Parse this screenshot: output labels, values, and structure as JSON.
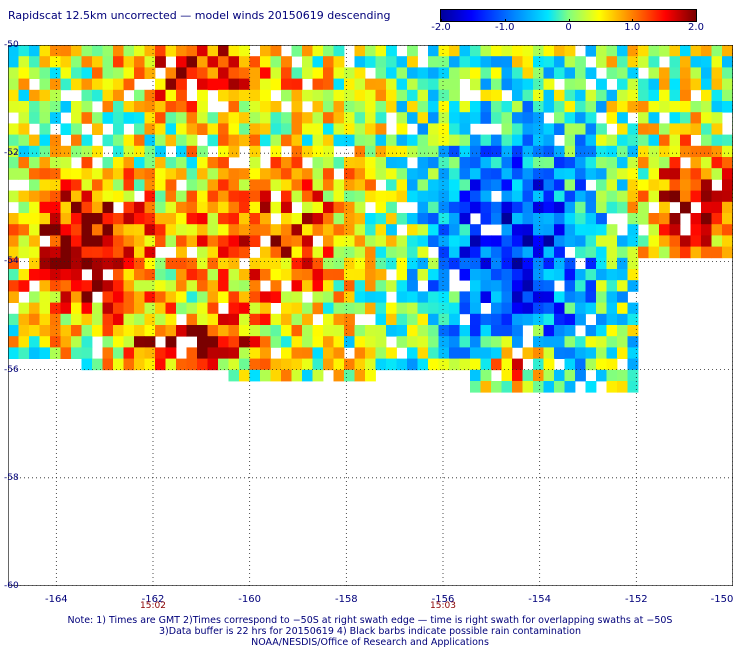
{
  "header": {
    "title": "Rapidscat 12.5km uncorrected — model winds 20150619 descending"
  },
  "colorbar": {
    "labels": [
      "-2.0",
      "-1.0",
      "0",
      "1.0",
      "2.0"
    ],
    "range": [
      -2.0,
      2.0
    ]
  },
  "footer": {
    "note_line1": "Note: 1) Times are GMT 2)Times correspond to −50S at right swath edge — time is right swath for overlapping swaths at −50S",
    "note_line2": "3)Data buffer is 22 hrs for 20150619 4) Black barbs indicate possible rain contamination",
    "note_line3": "NOAA/NESDIS/Office of Research and Applications"
  },
  "chart_data": {
    "type": "heatmap",
    "title": "Rapidscat 12.5km uncorrected — model winds 20150619 descending",
    "xlabel": "",
    "ylabel": "",
    "xlim": [
      -165.0,
      -150.0
    ],
    "ylim": [
      -60,
      -50
    ],
    "x_ticks": [
      "-164",
      "-162",
      "-160",
      "-158",
      "-156",
      "-154",
      "-152",
      "-150"
    ],
    "y_ticks": [
      "-50",
      "-52",
      "-54",
      "-56",
      "-58",
      "-60"
    ],
    "time_labels": [
      {
        "lon": -162.0,
        "text": "15:02"
      },
      {
        "lon": -156.0,
        "text": "15:03"
      }
    ],
    "value_range": [
      -2.0,
      2.0
    ],
    "grid": true,
    "regions": [
      {
        "name": "strong-positive-west",
        "lon": [
          -164.6,
          -162.2
        ],
        "lat": [
          -55.0,
          -52.5
        ],
        "value": 2.0
      },
      {
        "name": "positive-north",
        "lon": [
          -162.6,
          -159.2
        ],
        "lat": [
          -51.0,
          -50.0
        ],
        "value": 1.6
      },
      {
        "name": "positive-central",
        "lon": [
          -161.5,
          -157.5
        ],
        "lat": [
          -55.0,
          -52.0
        ],
        "value": 1.3
      },
      {
        "name": "strong-positive-south",
        "lon": [
          -162.5,
          -160.0
        ],
        "lat": [
          -55.8,
          -55.2
        ],
        "value": 1.9
      },
      {
        "name": "negative-east",
        "lon": [
          -156.5,
          -152.5
        ],
        "lat": [
          -56.5,
          -51.0
        ],
        "value": -1.4
      },
      {
        "name": "positive-far-east",
        "lon": [
          -151.8,
          -150.0
        ],
        "lat": [
          -54.0,
          -52.0
        ],
        "value": 1.8
      },
      {
        "name": "positive-southeast",
        "lon": [
          -155.0,
          -154.0
        ],
        "lat": [
          -56.2,
          -55.6
        ],
        "value": 1.7
      }
    ]
  }
}
